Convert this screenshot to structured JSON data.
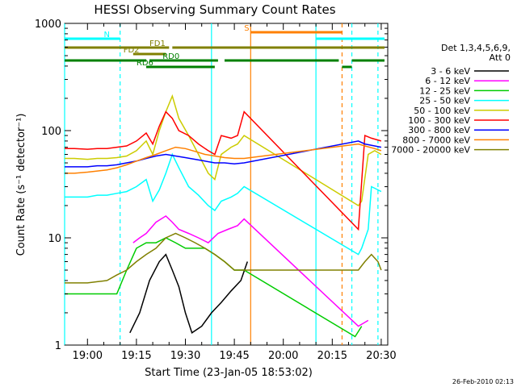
{
  "chart_data": {
    "type": "line",
    "title": "HESSI Observing Summary Count Rates",
    "xlabel": "Start Time (23-Jan-05 18:53:02)",
    "ylabel": "Count Rate (s⁻¹ detector⁻¹)",
    "y_scale": "log",
    "ylim": [
      1,
      1000
    ],
    "xlim": [
      "18:53",
      "20:32"
    ],
    "x_ticks": [
      "19:00",
      "19:15",
      "19:30",
      "19:45",
      "20:00",
      "20:15",
      "20:30"
    ],
    "y_ticks": [
      "1",
      "10",
      "100",
      "1000"
    ],
    "legend": {
      "placement": "right-outside",
      "header": [
        "Det 1,3,4,5,6,9,",
        "Att 0"
      ]
    },
    "series": [
      {
        "name": "3 - 6 keV",
        "color": "#000000",
        "points": [
          [
            "19:13",
            1.3
          ],
          [
            "19:16",
            2
          ],
          [
            "19:19",
            4
          ],
          [
            "19:22",
            6
          ],
          [
            "19:24",
            7
          ],
          [
            "19:26",
            5
          ],
          [
            "19:28",
            3.5
          ],
          [
            "19:30",
            2
          ],
          [
            "19:32",
            1.3
          ],
          [
            "19:35",
            1.5
          ],
          [
            "19:38",
            2
          ],
          [
            "19:41",
            2.5
          ],
          [
            "19:44",
            3.2
          ],
          [
            "19:47",
            4
          ],
          [
            "19:49",
            6
          ]
        ]
      },
      {
        "name": "6 - 12 keV",
        "color": "#ff00ff",
        "points": [
          [
            "19:14",
            9
          ],
          [
            "19:16",
            10
          ],
          [
            "19:18",
            11
          ],
          [
            "19:21",
            14
          ],
          [
            "19:24",
            16
          ],
          [
            "19:26",
            14
          ],
          [
            "19:28",
            12
          ],
          [
            "19:31",
            11
          ],
          [
            "19:34",
            10
          ],
          [
            "19:37",
            9
          ],
          [
            "19:40",
            11
          ],
          [
            "19:43",
            12
          ],
          [
            "19:46",
            13
          ],
          [
            "19:48",
            15
          ],
          [
            "20:23",
            1.5
          ],
          [
            "20:26",
            1.7
          ]
        ]
      },
      {
        "name": "12 - 25 keV",
        "color": "#00cc00",
        "points": [
          [
            "18:53",
            3
          ],
          [
            "18:56",
            3
          ],
          [
            "19:00",
            3
          ],
          [
            "19:03",
            3
          ],
          [
            "19:06",
            3
          ],
          [
            "19:09",
            3
          ],
          [
            "19:12",
            5
          ],
          [
            "19:15",
            8
          ],
          [
            "19:18",
            9
          ],
          [
            "19:21",
            9
          ],
          [
            "19:24",
            10
          ],
          [
            "19:27",
            9
          ],
          [
            "19:30",
            8
          ],
          [
            "19:33",
            8
          ],
          [
            "19:36",
            8
          ],
          [
            "19:39",
            7
          ],
          [
            "19:42",
            6
          ],
          [
            "19:45",
            5
          ],
          [
            "19:48",
            5
          ],
          [
            "20:22",
            1.2
          ],
          [
            "20:24",
            1.5
          ]
        ]
      },
      {
        "name": "25 - 50 keV",
        "color": "#00ffff",
        "points": [
          [
            "18:53",
            24
          ],
          [
            "18:56",
            24
          ],
          [
            "19:00",
            24
          ],
          [
            "19:03",
            25
          ],
          [
            "19:06",
            25
          ],
          [
            "19:09",
            26
          ],
          [
            "19:12",
            27
          ],
          [
            "19:15",
            30
          ],
          [
            "19:18",
            35
          ],
          [
            "19:20",
            22
          ],
          [
            "19:22",
            28
          ],
          [
            "19:24",
            40
          ],
          [
            "19:26",
            60
          ],
          [
            "19:28",
            45
          ],
          [
            "19:31",
            30
          ],
          [
            "19:34",
            25
          ],
          [
            "19:37",
            20
          ],
          [
            "19:39",
            18
          ],
          [
            "19:41",
            22
          ],
          [
            "19:44",
            24
          ],
          [
            "19:46",
            26
          ],
          [
            "19:48",
            30
          ],
          [
            "20:23",
            7
          ],
          [
            "20:24",
            8
          ],
          [
            "20:26",
            12
          ],
          [
            "20:27",
            30
          ],
          [
            "20:29",
            28
          ],
          [
            "20:30",
            27
          ]
        ]
      },
      {
        "name": "50 - 100 keV",
        "color": "#cccc00",
        "points": [
          [
            "18:53",
            55
          ],
          [
            "18:56",
            55
          ],
          [
            "19:00",
            54
          ],
          [
            "19:03",
            55
          ],
          [
            "19:06",
            55
          ],
          [
            "19:09",
            56
          ],
          [
            "19:12",
            58
          ],
          [
            "19:15",
            65
          ],
          [
            "19:18",
            80
          ],
          [
            "19:20",
            60
          ],
          [
            "19:22",
            100
          ],
          [
            "19:24",
            150
          ],
          [
            "19:26",
            210
          ],
          [
            "19:28",
            130
          ],
          [
            "19:31",
            90
          ],
          [
            "19:34",
            60
          ],
          [
            "19:37",
            40
          ],
          [
            "19:39",
            35
          ],
          [
            "19:41",
            60
          ],
          [
            "19:44",
            70
          ],
          [
            "19:46",
            75
          ],
          [
            "19:48",
            90
          ],
          [
            "20:23",
            20
          ],
          [
            "20:24",
            22
          ],
          [
            "20:26",
            60
          ],
          [
            "20:28",
            65
          ],
          [
            "20:30",
            60
          ]
        ]
      },
      {
        "name": "100 - 300 keV",
        "color": "#ff0000",
        "points": [
          [
            "18:53",
            68
          ],
          [
            "18:56",
            68
          ],
          [
            "19:00",
            67
          ],
          [
            "19:03",
            68
          ],
          [
            "19:06",
            68
          ],
          [
            "19:09",
            70
          ],
          [
            "19:12",
            72
          ],
          [
            "19:15",
            80
          ],
          [
            "19:18",
            95
          ],
          [
            "19:20",
            75
          ],
          [
            "19:22",
            110
          ],
          [
            "19:24",
            150
          ],
          [
            "19:26",
            130
          ],
          [
            "19:28",
            100
          ],
          [
            "19:31",
            90
          ],
          [
            "19:34",
            75
          ],
          [
            "19:37",
            65
          ],
          [
            "19:39",
            60
          ],
          [
            "19:41",
            90
          ],
          [
            "19:44",
            85
          ],
          [
            "19:46",
            90
          ],
          [
            "19:48",
            150
          ],
          [
            "20:23",
            12
          ],
          [
            "20:25",
            90
          ],
          [
            "20:27",
            85
          ],
          [
            "20:30",
            80
          ]
        ]
      },
      {
        "name": "300 - 800 keV",
        "color": "#0000ff",
        "points": [
          [
            "18:53",
            46
          ],
          [
            "18:56",
            46
          ],
          [
            "19:00",
            46
          ],
          [
            "19:03",
            47
          ],
          [
            "19:06",
            47
          ],
          [
            "19:09",
            48
          ],
          [
            "19:12",
            50
          ],
          [
            "19:15",
            52
          ],
          [
            "19:18",
            55
          ],
          [
            "19:21",
            58
          ],
          [
            "19:24",
            60
          ],
          [
            "19:27",
            58
          ],
          [
            "19:30",
            56
          ],
          [
            "19:33",
            54
          ],
          [
            "19:36",
            52
          ],
          [
            "19:39",
            50
          ],
          [
            "19:42",
            50
          ],
          [
            "19:45",
            49
          ],
          [
            "19:48",
            50
          ],
          [
            "20:23",
            80
          ],
          [
            "20:25",
            75
          ],
          [
            "20:28",
            72
          ],
          [
            "20:30",
            70
          ]
        ]
      },
      {
        "name": "800 - 7000 keV",
        "color": "#ff8000",
        "points": [
          [
            "18:53",
            40
          ],
          [
            "18:56",
            40
          ],
          [
            "19:00",
            41
          ],
          [
            "19:03",
            42
          ],
          [
            "19:06",
            43
          ],
          [
            "19:09",
            45
          ],
          [
            "19:12",
            48
          ],
          [
            "19:15",
            52
          ],
          [
            "19:18",
            56
          ],
          [
            "19:21",
            60
          ],
          [
            "19:24",
            65
          ],
          [
            "19:27",
            70
          ],
          [
            "19:30",
            68
          ],
          [
            "19:33",
            64
          ],
          [
            "19:36",
            60
          ],
          [
            "19:39",
            58
          ],
          [
            "19:42",
            56
          ],
          [
            "19:45",
            55
          ],
          [
            "19:48",
            55
          ],
          [
            "20:23",
            75
          ],
          [
            "20:25",
            72
          ],
          [
            "20:28",
            68
          ],
          [
            "20:30",
            65
          ]
        ]
      },
      {
        "name": "7000 - 20000 keV",
        "color": "#808000",
        "points": [
          [
            "18:53",
            3.8
          ],
          [
            "18:56",
            3.8
          ],
          [
            "19:00",
            3.8
          ],
          [
            "19:03",
            3.9
          ],
          [
            "19:06",
            4
          ],
          [
            "19:09",
            4.5
          ],
          [
            "19:12",
            5
          ],
          [
            "19:15",
            6
          ],
          [
            "19:18",
            7
          ],
          [
            "19:21",
            8
          ],
          [
            "19:24",
            10
          ],
          [
            "19:27",
            11
          ],
          [
            "19:30",
            10
          ],
          [
            "19:33",
            9
          ],
          [
            "19:36",
            8
          ],
          [
            "19:39",
            7
          ],
          [
            "19:42",
            6
          ],
          [
            "19:45",
            5
          ],
          [
            "19:48",
            5
          ],
          [
            "20:23",
            5
          ],
          [
            "20:25",
            6
          ],
          [
            "20:27",
            7
          ],
          [
            "20:29",
            6
          ],
          [
            "20:30",
            5
          ]
        ]
      }
    ],
    "vlines": [
      {
        "x": "18:53",
        "color": "#00ffff",
        "style": "solid"
      },
      {
        "x": "19:10",
        "color": "#00ffff",
        "style": "dashed"
      },
      {
        "x": "19:38",
        "color": "#00ffff",
        "style": "solid"
      },
      {
        "x": "19:50",
        "color": "#ff8000",
        "style": "solid"
      },
      {
        "x": "20:10",
        "color": "#00ffff",
        "style": "solid"
      },
      {
        "x": "20:18",
        "color": "#ff8000",
        "style": "dashed"
      },
      {
        "x": "20:21",
        "color": "#00ffff",
        "style": "dashed"
      },
      {
        "x": "20:29",
        "color": "#00ffff",
        "style": "dashed"
      }
    ],
    "flags": [
      {
        "label": "N",
        "color": "#00ffff",
        "segments": [
          [
            "18:53",
            "19:10"
          ],
          [
            "20:10",
            "20:31"
          ]
        ]
      },
      {
        "label": "S",
        "color": "#ff8000",
        "segments": [
          [
            "19:50",
            "20:18"
          ]
        ]
      },
      {
        "label": "FD1",
        "color": "#808000",
        "segments": [
          [
            "18:53",
            "19:25"
          ],
          [
            "19:26",
            "20:31"
          ]
        ]
      },
      {
        "label": "FD2",
        "color": "#808000",
        "segments": [
          [
            "19:14",
            "19:24"
          ]
        ]
      },
      {
        "label": "RD0",
        "color": "#008000",
        "segments": [
          [
            "18:53",
            "19:18"
          ],
          [
            "19:19",
            "19:40"
          ],
          [
            "19:42",
            "20:17"
          ],
          [
            "20:21",
            "20:31"
          ]
        ]
      },
      {
        "label": "RD6",
        "color": "#008000",
        "segments": [
          [
            "19:18",
            "19:39"
          ],
          [
            "20:18",
            "20:21"
          ]
        ]
      }
    ]
  },
  "footer": {
    "timestamp": "26-Feb-2010 02:13"
  }
}
